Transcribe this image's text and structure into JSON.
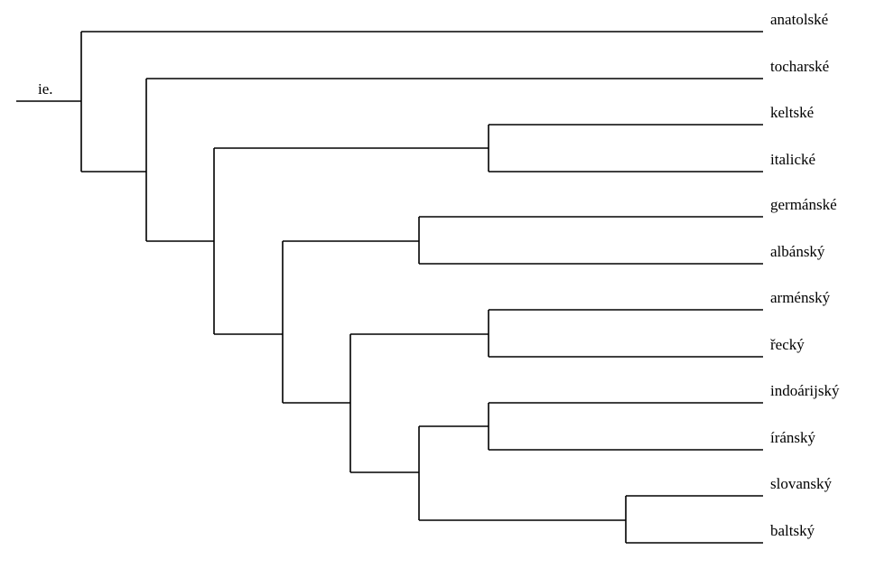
{
  "tree": {
    "root": "ie.",
    "leaves": [
      "anatolské",
      "tocharské",
      "keltské",
      "italické",
      "germánské",
      "albánský",
      "arménský",
      "řecký",
      "indoárijský",
      "íránský",
      "slovanský",
      "baltský"
    ]
  }
}
